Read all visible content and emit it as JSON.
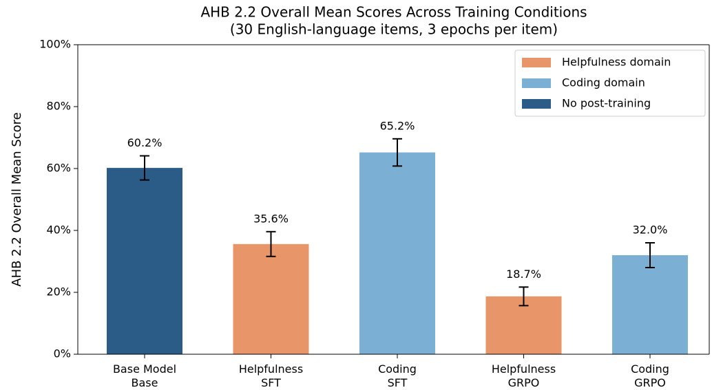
{
  "chart_data": {
    "type": "bar",
    "title": "AHB 2.2 Overall Mean Scores Across Training Conditions",
    "subtitle": "(30 English-language items, 3 epochs per item)",
    "y_label": "AHB 2.2 Overall Mean Score",
    "categories": [
      "Base Model\nBase",
      "Helpfulness\nSFT",
      "Coding\nSFT",
      "Helpfulness\nGRPO",
      "Coding\nGRPO"
    ],
    "values": [
      60.2,
      35.6,
      65.2,
      18.7,
      32.0
    ],
    "value_labels": [
      "60.2%",
      "35.6%",
      "65.2%",
      "18.7%",
      "32.0%"
    ],
    "errors": [
      3.9,
      4.0,
      4.4,
      3.0,
      4.0
    ],
    "colors": [
      "#2b5b87",
      "#e8956a",
      "#7bafd4",
      "#e8956a",
      "#7bafd4"
    ],
    "legend": [
      {
        "name": "Helpfulness domain",
        "color": "#e8956a"
      },
      {
        "name": "Coding domain",
        "color": "#7bafd4"
      },
      {
        "name": "No post-training",
        "color": "#2b5b87"
      }
    ],
    "legend_position": "upper right",
    "ylim": [
      0,
      100
    ],
    "yticks": [
      {
        "value": 0,
        "label": "0%"
      },
      {
        "value": 20,
        "label": "20%"
      },
      {
        "value": 40,
        "label": "40%"
      },
      {
        "value": 60,
        "label": "60%"
      },
      {
        "value": 80,
        "label": "80%"
      },
      {
        "value": 100,
        "label": "100%"
      }
    ]
  }
}
